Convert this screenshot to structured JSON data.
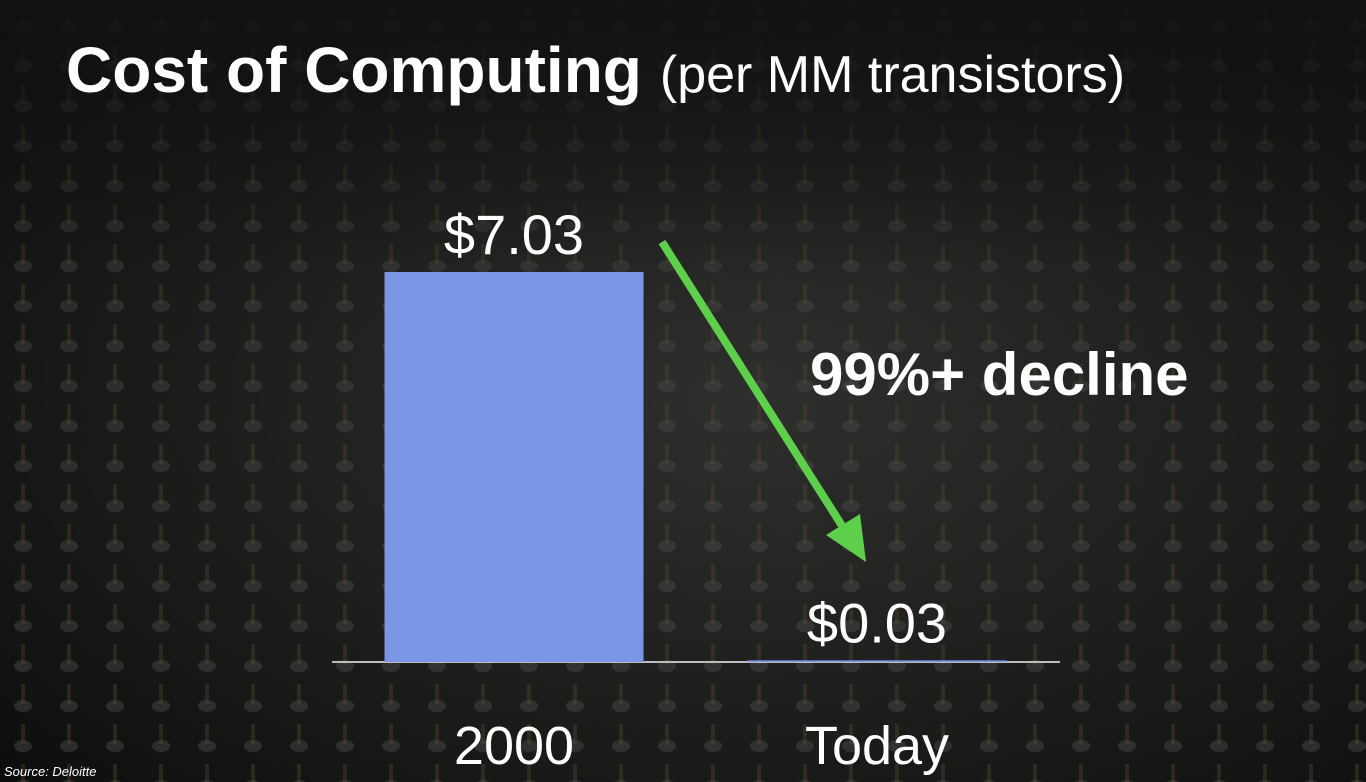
{
  "chart_data": {
    "type": "bar",
    "title": "Cost of Computing",
    "subtitle": "(per MM transistors)",
    "categories": [
      "2000",
      "Today"
    ],
    "values": [
      7.03,
      0.03
    ],
    "value_labels": [
      "$7.03",
      "$0.03"
    ],
    "color": "#7b96e6",
    "annotation": "99%+ decline",
    "source": "Source: Deloitte"
  }
}
